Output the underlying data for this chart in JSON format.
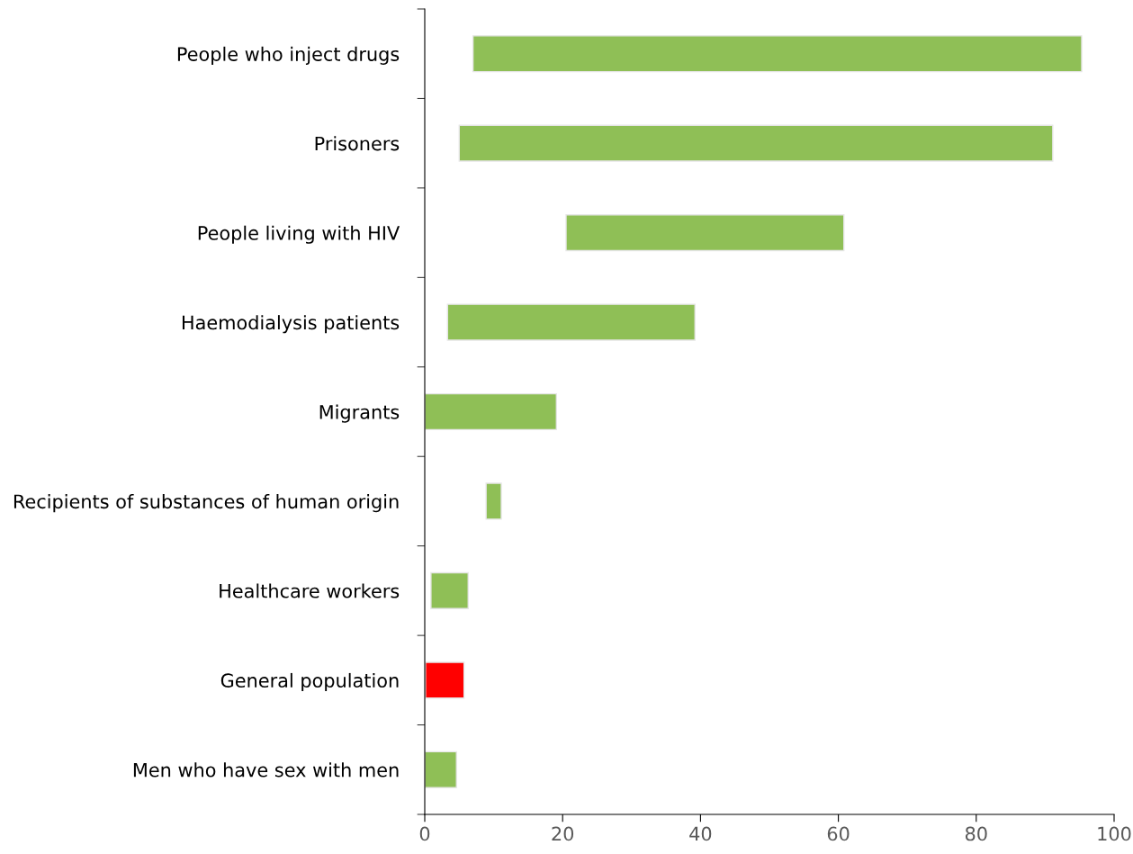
{
  "chart_data": {
    "type": "bar",
    "orientation": "horizontal",
    "categories": [
      "People who inject drugs",
      "Prisoners",
      "People living with HIV",
      "Haemodialysis patients",
      "Migrants",
      "Recipients of substances of human origin",
      "Healthcare workers",
      "General population",
      "Men who have sex with men"
    ],
    "base": [
      7.0,
      5.0,
      20.5,
      3.3,
      0,
      8.9,
      0.9,
      0.1,
      0
    ],
    "values": [
      88.3,
      86.1,
      40.3,
      35.9,
      19.1,
      2.2,
      5.4,
      5.6,
      4.6
    ],
    "colors": [
      "#8fbf56",
      "#8fbf56",
      "#8fbf56",
      "#8fbf56",
      "#8fbf56",
      "#8fbf56",
      "#8fbf56",
      "#ff0000",
      "#8fbf56"
    ],
    "xlim": [
      0,
      100
    ],
    "xticks": [
      0,
      20,
      40,
      60,
      80,
      100
    ],
    "grid": false
  }
}
